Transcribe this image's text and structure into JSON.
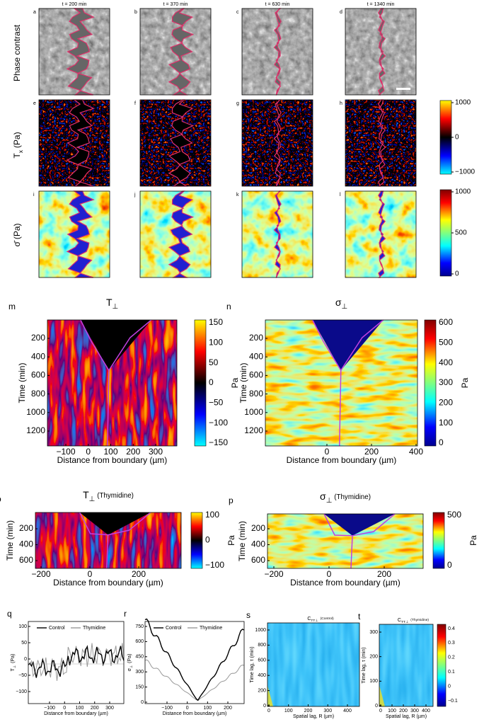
{
  "row_labels": {
    "phase": "Phase contrast",
    "tx": {
      "main": "T",
      "sub": "x",
      "unit": "(Pa)"
    },
    "sigma": {
      "main": "σ̄",
      "unit": "(Pa)"
    }
  },
  "times": [
    "t = 200 min",
    "t = 370 min",
    "t = 630 min",
    "t = 1340 min"
  ],
  "image_panels": [
    [
      "a",
      "b",
      "c",
      "d"
    ],
    [
      "e",
      "f",
      "g",
      "h"
    ],
    [
      "i",
      "j",
      "k",
      "l"
    ]
  ],
  "colorbars": {
    "tx": [
      "1000",
      "0",
      "−1000"
    ],
    "sigma": [
      "1000",
      "500",
      "0"
    ]
  },
  "kymographs": [
    {
      "letter": "m",
      "title": {
        "main": "T",
        "sub": "⊥"
      },
      "yticks": [
        "200",
        "400",
        "600",
        "800",
        "1000",
        "1200"
      ],
      "ylabel": "Time (min)",
      "xticks": [
        "−100",
        "0",
        "100",
        "200",
        "300"
      ],
      "xlabel": "Distance from boundary (µm)",
      "cbar": [
        "150",
        "100",
        "50",
        "0",
        "−50",
        "−100",
        "−150"
      ],
      "unit": "Pa"
    },
    {
      "letter": "n",
      "title": {
        "main": "σ",
        "sub": "⊥"
      },
      "yticks": [
        "200",
        "400",
        "600",
        "800",
        "1000",
        "1200"
      ],
      "ylabel": "Time (min)",
      "xticks": [
        "0",
        "200",
        "400"
      ],
      "xlabel": "Distance from boundary (µm)",
      "cbar": [
        "600",
        "500",
        "400",
        "300",
        "200",
        "100",
        "0"
      ],
      "unit": "Pa"
    },
    {
      "letter": "o",
      "title": {
        "main": "T",
        "sub": "⊥",
        "note": "(Thymidine)"
      },
      "yticks": [
        "200",
        "400",
        "600"
      ],
      "ylabel": "Time (min)",
      "xticks": [
        "−200",
        "0",
        "200"
      ],
      "xlabel": "Distance from boundary (µm)",
      "cbar": [
        "100",
        "0",
        "−100"
      ],
      "unit": "Pa"
    },
    {
      "letter": "p",
      "title": {
        "main": "σ",
        "sub": "⊥",
        "note": "(Thymidine)"
      },
      "yticks": [
        "200",
        "400",
        "600"
      ],
      "ylabel": "Time (min)",
      "xticks": [
        "−200",
        "0",
        "200"
      ],
      "xlabel": "Distance from boundary (µm)",
      "cbar": [
        "500",
        "0"
      ],
      "unit": "Pa"
    }
  ],
  "plots": [
    {
      "letter": "q",
      "ylabel": {
        "main": "T",
        "sub": "⊥",
        "unit": "(Pa)"
      },
      "yticks": [
        "100",
        "50",
        "0",
        "−50",
        "−100"
      ],
      "xticks": [
        "−100",
        "0",
        "100",
        "200",
        "300"
      ],
      "xlabel": "Distance from boundary (µm)",
      "legend": [
        "Control",
        "Thymidine"
      ]
    },
    {
      "letter": "r",
      "ylabel": {
        "main": "σ",
        "sub": "⊥",
        "unit": "(Pa)"
      },
      "yticks": [
        "750",
        "600",
        "450",
        "300",
        "150",
        "0"
      ],
      "xticks": [
        "−100",
        "0",
        "100",
        "200"
      ],
      "xlabel": "Distance from boundary (µm)",
      "legend": [
        "Control",
        "Thymidine"
      ]
    },
    {
      "letter": "s",
      "title": {
        "main": "C",
        "sub": "TT⊥",
        "note": "(Control)"
      },
      "ylabel": "Time lag, τ (min)",
      "yticks": [
        "1000",
        "800",
        "600",
        "400",
        "200",
        "0"
      ],
      "xticks": [
        "0",
        "100",
        "200",
        "300",
        "400"
      ],
      "xlabel": "Spatial lag, R (µm)"
    },
    {
      "letter": "t",
      "title": {
        "main": "C",
        "sub": "TT⊥",
        "note": "(Thymidine)"
      },
      "ylabel": "Time lag, τ (min)",
      "yticks": [
        "300",
        "200",
        "100",
        "0"
      ],
      "xticks": [
        "0",
        "100",
        "200",
        "300",
        "400"
      ],
      "xlabel": "Spatial lag, R (µm)",
      "cbar": [
        "0.4",
        "0.3",
        "0.2",
        "0.1",
        "0",
        "−0.1"
      ]
    }
  ]
}
